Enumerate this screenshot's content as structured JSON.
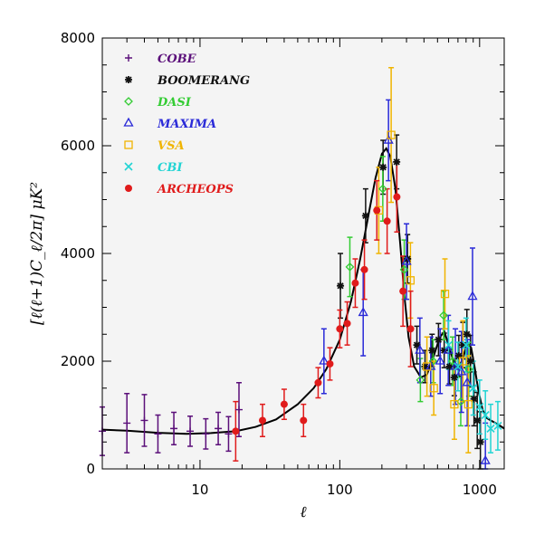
{
  "chart_data": {
    "type": "scatter",
    "title": "",
    "xlabel": "ℓ",
    "ylabel": "[ℓ(ℓ+1)C_ℓ/2π] μK²",
    "x_scale": "log",
    "xlim": [
      2,
      1500
    ],
    "ylim": [
      0,
      8000
    ],
    "x_tick_labels": [
      "10",
      "100",
      "1000"
    ],
    "y_tick_labels": [
      "0",
      "2000",
      "4000",
      "6000",
      "8000"
    ],
    "grid": false,
    "legend_position": "top-left",
    "colors": {
      "COBE": "#5b0f7a",
      "BOOMERANG": "#111111",
      "DASI": "#33cc33",
      "MAXIMA": "#2a2ad8",
      "VSA": "#f0b400",
      "CBI": "#22d4d4",
      "ARCHEOPS": "#e01b1b",
      "model": "#000000",
      "background": "#f4f4f4"
    },
    "series": [
      {
        "name": "COBE",
        "marker": "plus",
        "points": [
          {
            "x": 2,
            "y": 700,
            "err": 450
          },
          {
            "x": 3,
            "y": 850,
            "err": 550
          },
          {
            "x": 4,
            "y": 900,
            "err": 480
          },
          {
            "x": 5,
            "y": 650,
            "err": 350
          },
          {
            "x": 6.5,
            "y": 750,
            "err": 300
          },
          {
            "x": 8.5,
            "y": 700,
            "err": 280
          },
          {
            "x": 11,
            "y": 650,
            "err": 280
          },
          {
            "x": 13.5,
            "y": 750,
            "err": 300
          },
          {
            "x": 16,
            "y": 650,
            "err": 320
          },
          {
            "x": 19,
            "y": 1100,
            "err": 500
          }
        ]
      },
      {
        "name": "BOOMERANG",
        "marker": "asterisk",
        "points": [
          {
            "x": 101,
            "y": 3400,
            "err": 600
          },
          {
            "x": 153,
            "y": 4700,
            "err": 500
          },
          {
            "x": 204,
            "y": 5600,
            "err": 500
          },
          {
            "x": 255,
            "y": 5700,
            "err": 500
          },
          {
            "x": 305,
            "y": 3900,
            "err": 450
          },
          {
            "x": 356,
            "y": 2300,
            "err": 350
          },
          {
            "x": 407,
            "y": 1900,
            "err": 300
          },
          {
            "x": 457,
            "y": 2200,
            "err": 300
          },
          {
            "x": 508,
            "y": 2400,
            "err": 300
          },
          {
            "x": 558,
            "y": 2200,
            "err": 320
          },
          {
            "x": 609,
            "y": 1900,
            "err": 320
          },
          {
            "x": 659,
            "y": 1700,
            "err": 340
          },
          {
            "x": 710,
            "y": 2100,
            "err": 380
          },
          {
            "x": 760,
            "y": 2300,
            "err": 420
          },
          {
            "x": 811,
            "y": 2500,
            "err": 460
          },
          {
            "x": 861,
            "y": 2000,
            "err": 480
          },
          {
            "x": 912,
            "y": 1300,
            "err": 500
          },
          {
            "x": 962,
            "y": 900,
            "err": 520
          },
          {
            "x": 1013,
            "y": 500,
            "err": 560
          }
        ]
      },
      {
        "name": "DASI",
        "marker": "diamond",
        "points": [
          {
            "x": 118,
            "y": 3750,
            "err": 550
          },
          {
            "x": 203,
            "y": 5200,
            "err": 600
          },
          {
            "x": 289,
            "y": 3700,
            "err": 550
          },
          {
            "x": 377,
            "y": 1650,
            "err": 400
          },
          {
            "x": 465,
            "y": 2000,
            "err": 400
          },
          {
            "x": 553,
            "y": 2850,
            "err": 450
          },
          {
            "x": 641,
            "y": 2000,
            "err": 450
          },
          {
            "x": 733,
            "y": 1250,
            "err": 450
          },
          {
            "x": 837,
            "y": 1850,
            "err": 500
          }
        ]
      },
      {
        "name": "MAXIMA",
        "marker": "triangle",
        "points": [
          {
            "x": 77,
            "y": 2000,
            "err": 600
          },
          {
            "x": 147,
            "y": 2900,
            "err": 800
          },
          {
            "x": 223,
            "y": 6100,
            "err": 750
          },
          {
            "x": 300,
            "y": 3850,
            "err": 700
          },
          {
            "x": 374,
            "y": 2200,
            "err": 600
          },
          {
            "x": 447,
            "y": 1900,
            "err": 550
          },
          {
            "x": 522,
            "y": 2000,
            "err": 600
          },
          {
            "x": 597,
            "y": 2200,
            "err": 650
          },
          {
            "x": 671,
            "y": 1900,
            "err": 700
          },
          {
            "x": 742,
            "y": 1800,
            "err": 750
          },
          {
            "x": 816,
            "y": 1600,
            "err": 800
          },
          {
            "x": 890,
            "y": 3200,
            "err": 900
          },
          {
            "x": 1100,
            "y": 150,
            "err": 700
          }
        ]
      },
      {
        "name": "VSA",
        "marker": "square",
        "points": [
          {
            "x": 190,
            "y": 4800,
            "err": 800
          },
          {
            "x": 233,
            "y": 6200,
            "err": 1250
          },
          {
            "x": 320,
            "y": 3500,
            "err": 700
          },
          {
            "x": 420,
            "y": 1900,
            "err": 550
          },
          {
            "x": 470,
            "y": 1500,
            "err": 500
          },
          {
            "x": 565,
            "y": 3250,
            "err": 650
          },
          {
            "x": 660,
            "y": 1200,
            "err": 650
          },
          {
            "x": 760,
            "y": 2000,
            "err": 750
          },
          {
            "x": 830,
            "y": 1200,
            "err": 900
          }
        ]
      },
      {
        "name": "CBI",
        "marker": "x",
        "points": [
          {
            "x": 600,
            "y": 2300,
            "err": 450
          },
          {
            "x": 700,
            "y": 1900,
            "err": 450
          },
          {
            "x": 800,
            "y": 2300,
            "err": 500
          },
          {
            "x": 900,
            "y": 1500,
            "err": 500
          },
          {
            "x": 1000,
            "y": 1150,
            "err": 500
          },
          {
            "x": 1100,
            "y": 1000,
            "err": 450
          },
          {
            "x": 1200,
            "y": 750,
            "err": 450
          },
          {
            "x": 1350,
            "y": 800,
            "err": 450
          }
        ]
      },
      {
        "name": "ARCHEOPS",
        "marker": "circle",
        "points": [
          {
            "x": 18,
            "y": 700,
            "err": 550
          },
          {
            "x": 28,
            "y": 900,
            "err": 300
          },
          {
            "x": 40,
            "y": 1200,
            "err": 280
          },
          {
            "x": 55,
            "y": 900,
            "err": 300
          },
          {
            "x": 70,
            "y": 1600,
            "err": 280
          },
          {
            "x": 85,
            "y": 1950,
            "err": 300
          },
          {
            "x": 100,
            "y": 2600,
            "err": 350
          },
          {
            "x": 113,
            "y": 2700,
            "err": 400
          },
          {
            "x": 129,
            "y": 3450,
            "err": 450
          },
          {
            "x": 150,
            "y": 3700,
            "err": 550
          },
          {
            "x": 184,
            "y": 4800,
            "err": 550
          },
          {
            "x": 218,
            "y": 4600,
            "err": 600
          },
          {
            "x": 256,
            "y": 5050,
            "err": 650
          },
          {
            "x": 283,
            "y": 3300,
            "err": 650
          },
          {
            "x": 321,
            "y": 2600,
            "err": 700
          }
        ]
      }
    ],
    "model_curve": {
      "name": "",
      "points": [
        [
          2,
          730
        ],
        [
          3,
          710
        ],
        [
          5,
          670
        ],
        [
          8,
          650
        ],
        [
          12,
          665
        ],
        [
          18,
          700
        ],
        [
          25,
          780
        ],
        [
          35,
          920
        ],
        [
          50,
          1200
        ],
        [
          65,
          1500
        ],
        [
          80,
          1850
        ],
        [
          100,
          2400
        ],
        [
          120,
          3100
        ],
        [
          140,
          3900
        ],
        [
          160,
          4700
        ],
        [
          180,
          5400
        ],
        [
          200,
          5850
        ],
        [
          215,
          5950
        ],
        [
          230,
          5800
        ],
        [
          250,
          5200
        ],
        [
          270,
          4200
        ],
        [
          290,
          3200
        ],
        [
          310,
          2450
        ],
        [
          340,
          1900
        ],
        [
          380,
          1700
        ],
        [
          420,
          1750
        ],
        [
          470,
          2100
        ],
        [
          520,
          2450
        ],
        [
          560,
          2550
        ],
        [
          600,
          2300
        ],
        [
          650,
          2000
        ],
        [
          700,
          1850
        ],
        [
          760,
          2050
        ],
        [
          820,
          2350
        ],
        [
          870,
          2250
        ],
        [
          920,
          1900
        ],
        [
          980,
          1450
        ],
        [
          1050,
          1100
        ],
        [
          1120,
          950
        ],
        [
          1200,
          900
        ],
        [
          1300,
          850
        ],
        [
          1400,
          800
        ],
        [
          1500,
          750
        ]
      ]
    }
  }
}
